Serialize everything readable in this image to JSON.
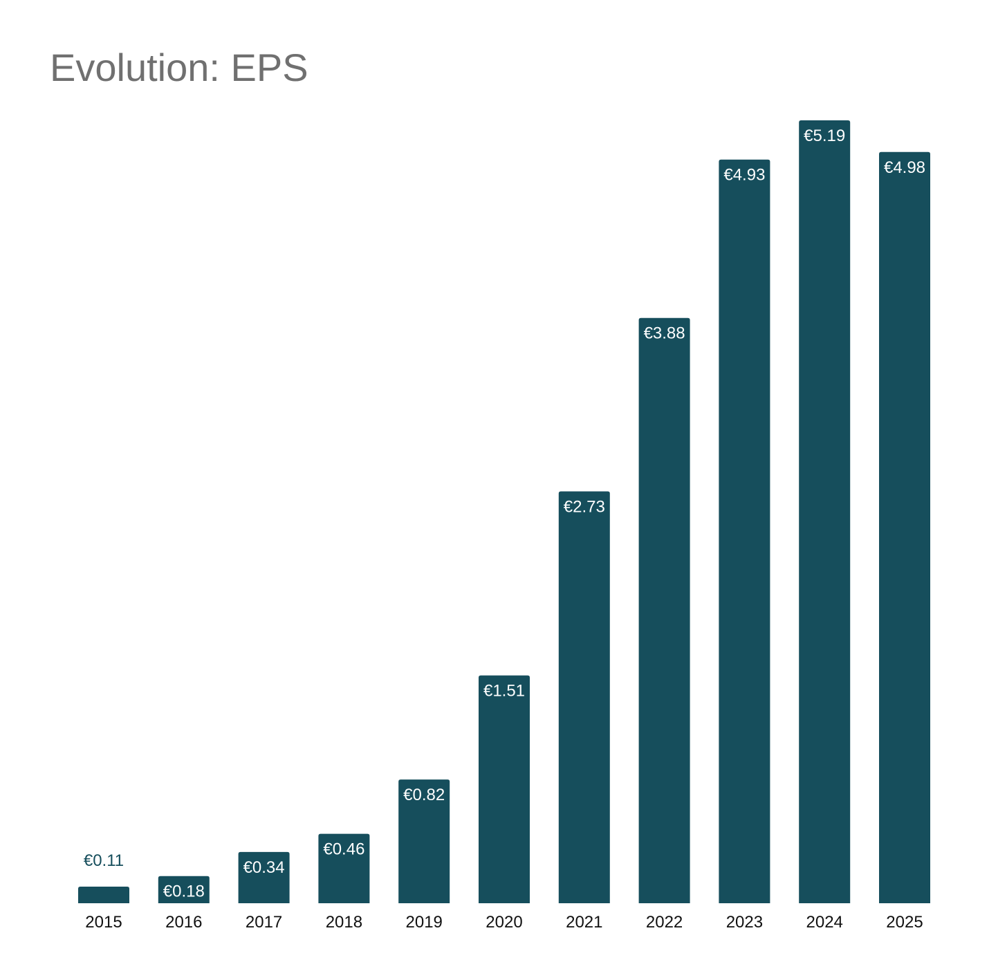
{
  "chart_data": {
    "type": "bar",
    "title": "Evolution: EPS",
    "xlabel": "",
    "ylabel": "",
    "categories": [
      "2015",
      "2016",
      "2017",
      "2018",
      "2019",
      "2020",
      "2021",
      "2022",
      "2023",
      "2024",
      "2025"
    ],
    "values": [
      0.11,
      0.18,
      0.34,
      0.46,
      0.82,
      1.51,
      2.73,
      3.88,
      4.93,
      5.19,
      4.98
    ],
    "value_labels": [
      "€0.11",
      "€0.18",
      "€0.34",
      "€0.46",
      "€0.82",
      "€1.51",
      "€2.73",
      "€3.88",
      "€4.93",
      "€5.19",
      "€4.98"
    ],
    "ylim": [
      0,
      5.19
    ],
    "grid": false,
    "legend": "none"
  },
  "colors": {
    "bar": "#164e5c",
    "label_inside": "#ffffff",
    "label_outside": "#164e5c",
    "axis_text": "#111111",
    "title": "#707070"
  }
}
